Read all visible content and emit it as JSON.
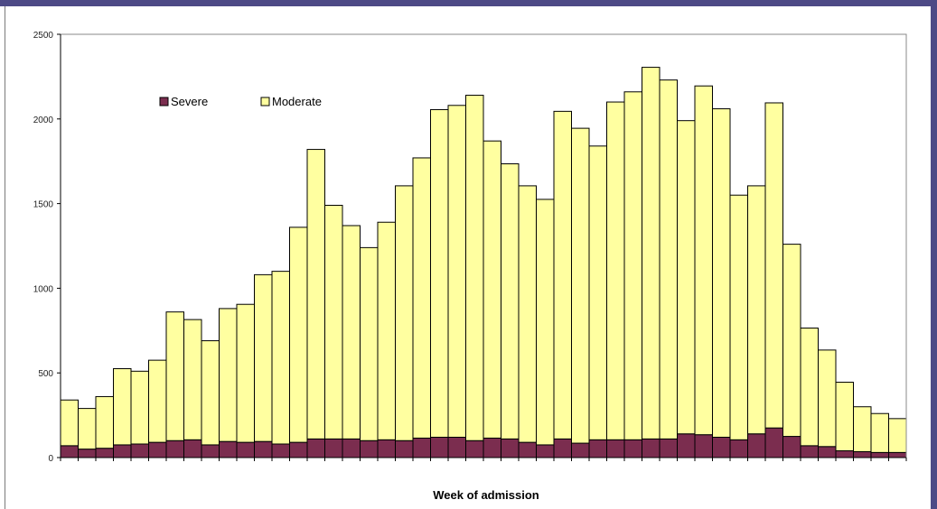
{
  "chart_data": {
    "type": "bar",
    "stacked": true,
    "title": "",
    "xlabel": "Week of admission",
    "ylabel": "",
    "ylim": [
      0,
      2500
    ],
    "yticks": [
      "0",
      "500",
      "1000",
      "1500",
      "2000",
      "2500"
    ],
    "grid": false,
    "legend_position": "top-left",
    "series": [
      {
        "name": "Severe",
        "color": "#7b2d4f",
        "values": [
          70,
          50,
          55,
          75,
          80,
          90,
          100,
          105,
          75,
          95,
          90,
          95,
          80,
          90,
          110,
          110,
          110,
          100,
          105,
          100,
          115,
          120,
          120,
          100,
          115,
          110,
          90,
          75,
          110,
          85,
          105,
          105,
          105,
          110,
          110,
          140,
          135,
          120,
          105,
          140,
          175,
          125,
          70,
          65,
          40,
          35,
          30,
          30
        ]
      },
      {
        "name": "Moderate",
        "color": "#ffffa0",
        "values": [
          270,
          240,
          305,
          450,
          430,
          485,
          760,
          710,
          615,
          785,
          815,
          985,
          1020,
          1270,
          1710,
          1380,
          1260,
          1140,
          1285,
          1505,
          1655,
          1935,
          1960,
          2040,
          1755,
          1625,
          1515,
          1450,
          1935,
          1860,
          1735,
          1995,
          2055,
          2195,
          2120,
          1850,
          2060,
          1940,
          1445,
          1465,
          1920,
          1135,
          695,
          570,
          405,
          265,
          230,
          200
        ]
      }
    ]
  }
}
